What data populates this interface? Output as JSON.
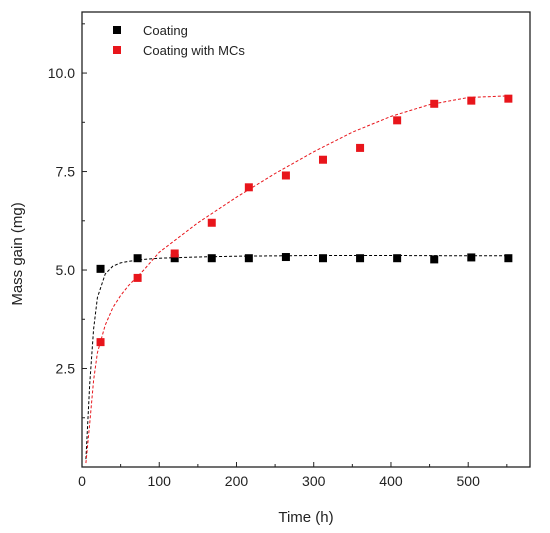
{
  "chart_data": {
    "type": "scatter",
    "xlabel": "Time (h)",
    "ylabel": "Mass gain (mg)",
    "xlim": [
      0,
      580
    ],
    "ylim": [
      0,
      11.55
    ],
    "xticks": [
      0,
      100,
      200,
      300,
      400,
      500
    ],
    "xtick_labels": [
      "0",
      "100",
      "200",
      "300",
      "400",
      "500"
    ],
    "yticks": [
      2.5,
      5.0,
      7.5,
      10.0
    ],
    "ytick_labels": [
      "2.5",
      "5.0",
      "7.5",
      "10.0"
    ],
    "grid": false,
    "legend_position": "top-left",
    "series": [
      {
        "name": "Coating",
        "color": "#000000",
        "marker": "square",
        "x": [
          24,
          72,
          120,
          168,
          216,
          264,
          312,
          360,
          408,
          456,
          504,
          552
        ],
        "y": [
          5.03,
          5.3,
          5.3,
          5.3,
          5.3,
          5.33,
          5.3,
          5.3,
          5.3,
          5.27,
          5.32,
          5.3
        ],
        "fit": {
          "style": "dashed",
          "x": [
            5,
            10,
            15,
            20,
            30,
            40,
            50,
            60,
            80,
            100,
            150,
            200,
            300,
            400,
            500,
            550
          ],
          "y": [
            0.2,
            2.1,
            3.5,
            4.3,
            4.9,
            5.1,
            5.18,
            5.22,
            5.27,
            5.3,
            5.33,
            5.35,
            5.37,
            5.37,
            5.36,
            5.36
          ]
        }
      },
      {
        "name": "Coating with MCs",
        "color": "#e8151b",
        "marker": "square",
        "x": [
          24,
          72,
          120,
          168,
          216,
          264,
          312,
          360,
          408,
          456,
          504,
          552
        ],
        "y": [
          3.17,
          4.8,
          5.42,
          6.2,
          7.1,
          7.4,
          7.8,
          8.1,
          8.8,
          9.22,
          9.3,
          9.35
        ],
        "fit": {
          "style": "dashed",
          "x": [
            5,
            10,
            15,
            20,
            30,
            40,
            50,
            60,
            80,
            100,
            150,
            200,
            250,
            300,
            350,
            400,
            450,
            500,
            550
          ],
          "y": [
            0.1,
            1.1,
            2.2,
            2.9,
            3.6,
            4.05,
            4.35,
            4.6,
            5.0,
            5.45,
            6.2,
            6.85,
            7.45,
            8.0,
            8.5,
            8.9,
            9.2,
            9.38,
            9.42
          ]
        }
      }
    ]
  }
}
